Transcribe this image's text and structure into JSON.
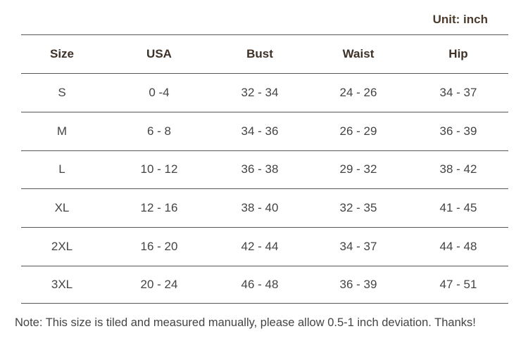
{
  "unit": "Unit: inch",
  "table": {
    "header": [
      "Size",
      "USA",
      "Bust",
      "Waist",
      "Hip"
    ],
    "rows": [
      [
        "S",
        "0 -4",
        "32 - 34",
        "24 - 26",
        "34 - 37"
      ],
      [
        "M",
        "6 - 8",
        "34 - 36",
        "26 - 29",
        "36 - 39"
      ],
      [
        "L",
        "10 - 12",
        "36 - 38",
        "29 - 32",
        "38 - 42"
      ],
      [
        "XL",
        "12 - 16",
        "38 - 40",
        "32 - 35",
        "41 - 45"
      ],
      [
        "2XL",
        "16 - 20",
        "42 - 44",
        "34 - 37",
        "44 - 48"
      ],
      [
        "3XL",
        "20 - 24",
        "46 - 48",
        "36 - 39",
        "47 - 51"
      ]
    ]
  },
  "note": "Note: This size is tiled and measured manually, please allow 0.5-1 inch deviation. Thanks!"
}
